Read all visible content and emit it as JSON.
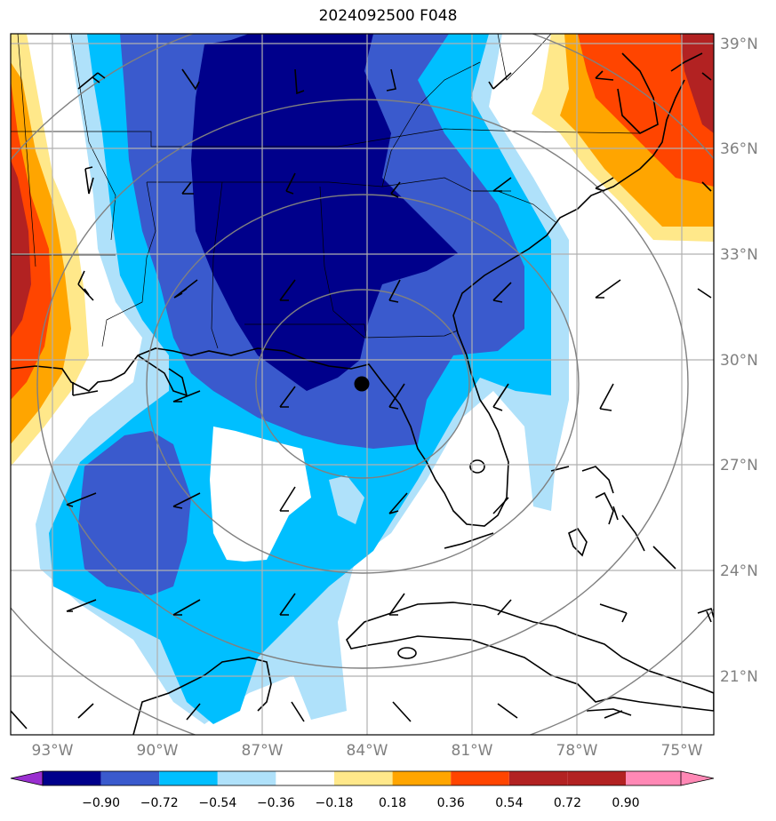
{
  "title": "2024092500 F048",
  "map": {
    "lat_labels": [
      "39°N",
      "36°N",
      "33°N",
      "30°N",
      "27°N",
      "24°N",
      "21°N"
    ],
    "lon_labels": [
      "93°W",
      "90°W",
      "87°W",
      "84°W",
      "81°W",
      "78°W",
      "75°W"
    ],
    "marker": "storm-center-dot"
  },
  "colorbar": {
    "levels": [
      "−0.90",
      "−0.72",
      "−0.54",
      "−0.36",
      "−0.18",
      "0.18",
      "0.36",
      "0.54",
      "0.72",
      "0.90"
    ],
    "colors": [
      "#9a2fd0",
      "#00008b",
      "#3a5acd",
      "#00bfff",
      "#afe1fa",
      "#ffffff",
      "#ffe88a",
      "#ffa500",
      "#ff4500",
      "#b22222",
      "#ff88b5"
    ]
  }
}
